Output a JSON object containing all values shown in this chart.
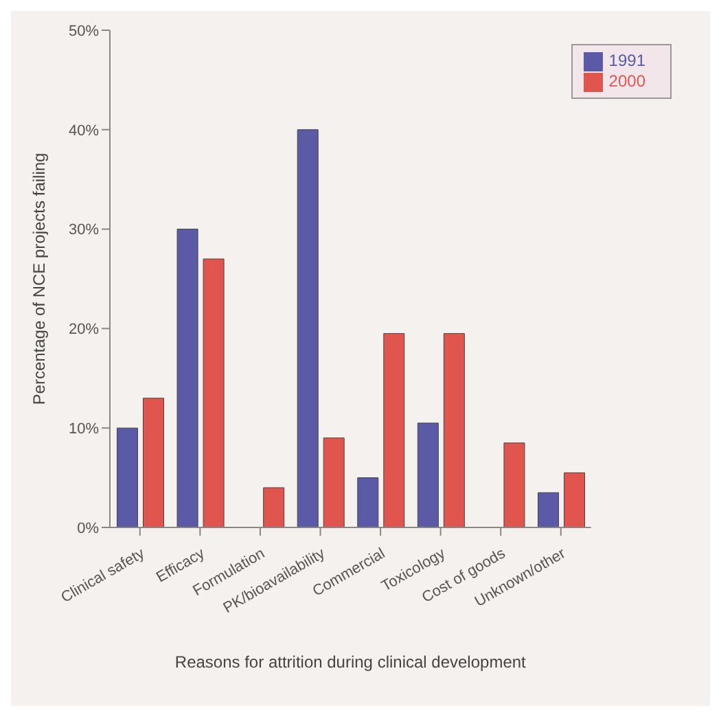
{
  "chart_data": {
    "type": "bar",
    "xlabel": "Reasons for attrition during clinical development",
    "ylabel": "Percentage of NCE projects failing",
    "categories": [
      "Clinical safety",
      "Efficacy",
      "Formulation",
      "PK/bioavailability",
      "Commercial",
      "Toxicology",
      "Cost of goods",
      "Unknown/other"
    ],
    "series": [
      {
        "name": "1991",
        "color": "#5b5aa6",
        "values": [
          10,
          30,
          0,
          40,
          5,
          10.5,
          0,
          3.5
        ]
      },
      {
        "name": "2000",
        "color": "#e0564e",
        "values": [
          13,
          27,
          4,
          9,
          19.5,
          19.5,
          8.5,
          5.5
        ]
      }
    ],
    "ylim": [
      0,
      50
    ],
    "yticks": [
      {
        "value": 0,
        "label": "0%"
      },
      {
        "value": 10,
        "label": "10%"
      },
      {
        "value": 20,
        "label": "20%"
      },
      {
        "value": 30,
        "label": "30%"
      },
      {
        "value": 40,
        "label": "40%"
      },
      {
        "value": 50,
        "label": "50%"
      }
    ],
    "grid": false,
    "legend": "top right"
  }
}
